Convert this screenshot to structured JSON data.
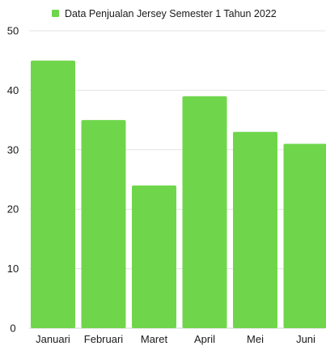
{
  "chart_data": {
    "type": "bar",
    "title": "",
    "xlabel": "",
    "ylabel": "",
    "categories": [
      "Januari",
      "Februari",
      "Maret",
      "April",
      "Mei",
      "Juni"
    ],
    "series": [
      {
        "name": "Data Penjualan Jersey Semester 1 Tahun 2022",
        "values": [
          45,
          35,
          24,
          39,
          33,
          31
        ],
        "color": "#6fd64b"
      }
    ],
    "ylim": [
      0,
      50
    ],
    "yticks": [
      0,
      10,
      20,
      30,
      40,
      50
    ],
    "grid": true,
    "legend_position": "top"
  }
}
